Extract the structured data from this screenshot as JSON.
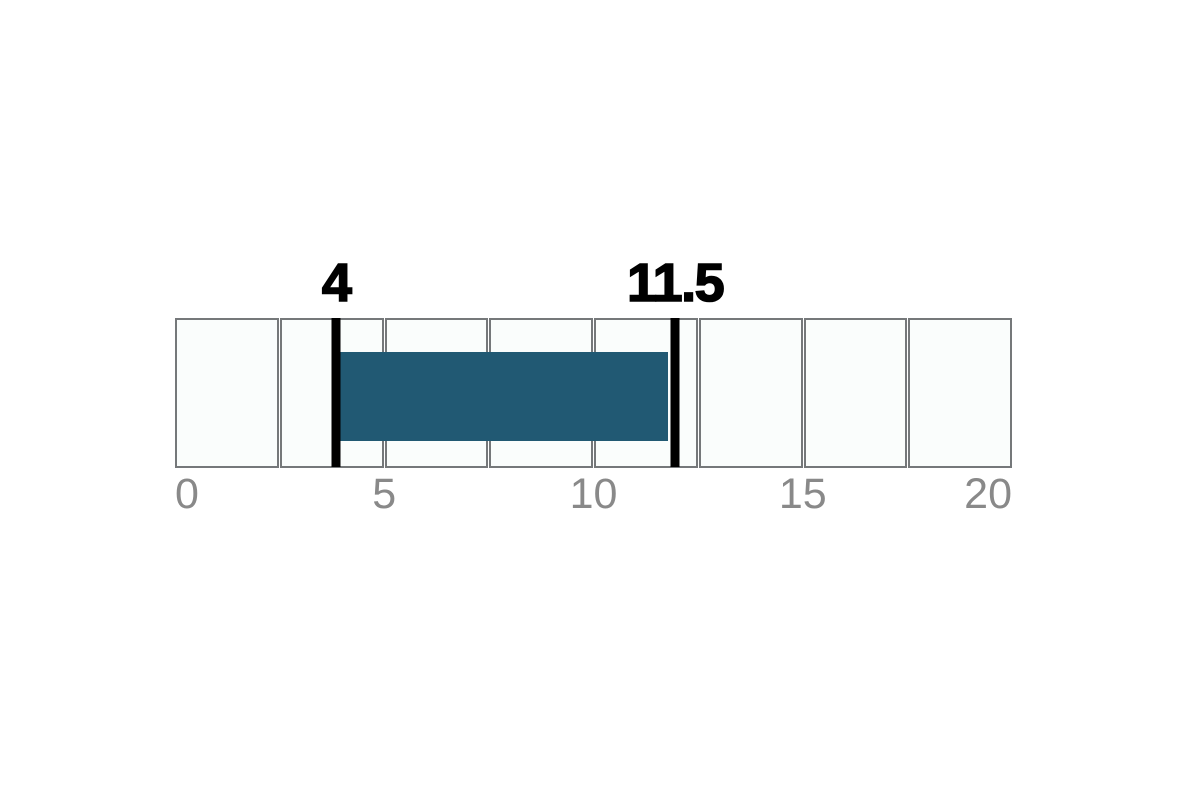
{
  "page": {
    "background": "#ffffff"
  },
  "chart_data": {
    "type": "bar",
    "variant": "number-line-range",
    "axis": {
      "min": 0,
      "max": 20,
      "tick_values": [
        0,
        5,
        10,
        15,
        20
      ],
      "tick_labels": [
        "0",
        "5",
        "10",
        "15",
        "20"
      ],
      "minor_grid_step": 2.5,
      "num_cells": 8,
      "grid": "cells",
      "legend": "none"
    },
    "range": {
      "start_label": "4",
      "end_label": "11.5",
      "start_value": 4,
      "end_value": 11.5,
      "drawn_start": 3.85,
      "drawn_end": 11.95
    },
    "colors": {
      "range_fill": "#215973",
      "marker": "#000000",
      "cell_fill": "#fafdfc",
      "cell_border": "#75787a",
      "tick_label": "#898989",
      "value_label": "#000000"
    }
  }
}
